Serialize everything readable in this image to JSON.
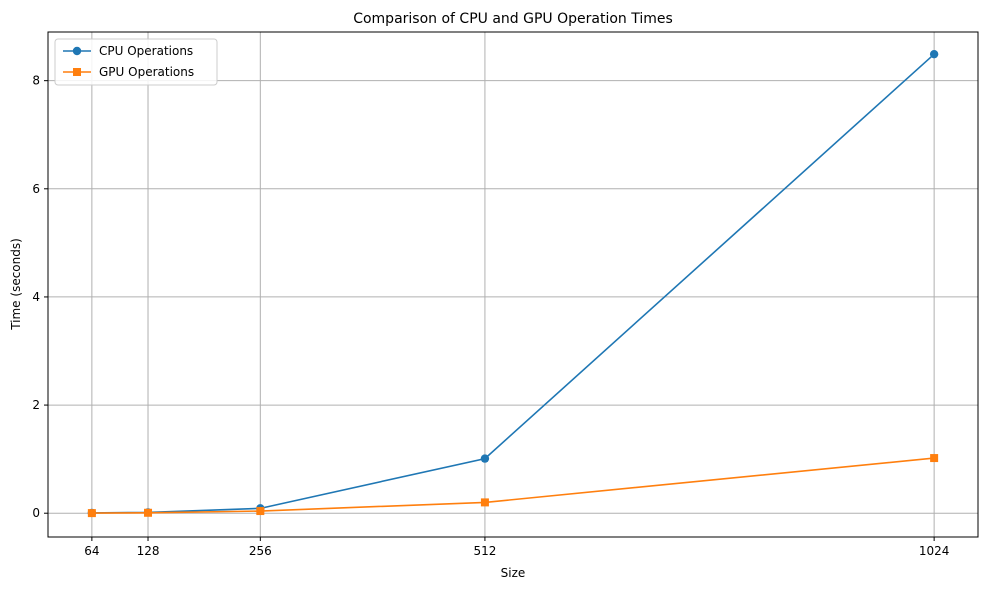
{
  "chart_data": {
    "type": "line",
    "title": "Comparison of CPU and GPU Operation Times",
    "xlabel": "Size",
    "ylabel": "Time (seconds)",
    "x": [
      64,
      128,
      256,
      512,
      1024
    ],
    "xlim": [
      14,
      1074
    ],
    "ylim": [
      -0.44,
      8.9
    ],
    "xticks": [
      "64",
      "128",
      "256",
      "512",
      "1024"
    ],
    "yticks": [
      "0",
      "2",
      "4",
      "6",
      "8"
    ],
    "grid": true,
    "legend_position": "top-left",
    "series": [
      {
        "name": "CPU Operations",
        "values": [
          0.005,
          0.015,
          0.09,
          1.01,
          8.49
        ],
        "color": "#1f77b4",
        "marker": "circle"
      },
      {
        "name": "GPU Operations",
        "values": [
          0.002,
          0.008,
          0.04,
          0.2,
          1.02
        ],
        "color": "#ff7f0e",
        "marker": "square"
      }
    ]
  }
}
